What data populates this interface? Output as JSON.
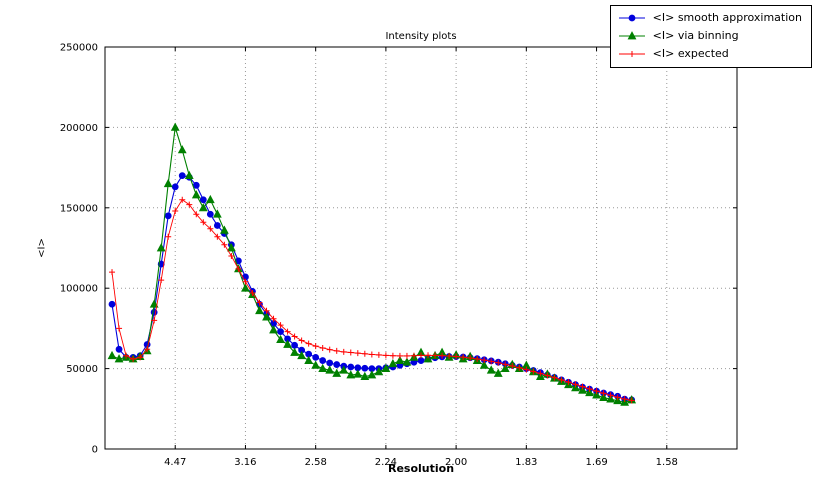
{
  "chart_data": {
    "type": "line",
    "title": "Intensity plots",
    "xlabel": "Resolution",
    "ylabel": "<I>",
    "xlim": [
      0,
      0.45
    ],
    "ylim": [
      0,
      250000
    ],
    "x_tick_values": [
      0.05,
      0.1,
      0.15,
      0.2,
      0.25,
      0.3,
      0.35,
      0.4
    ],
    "x_tick_labels": [
      "4.47",
      "3.16",
      "2.58",
      "2.24",
      "2.00",
      "1.83",
      "1.69",
      "1.58"
    ],
    "y_ticks": [
      0,
      50000,
      100000,
      150000,
      200000,
      250000
    ],
    "grid": true,
    "legend_position": "top-right",
    "colors": {
      "grid": "#999999",
      "axis": "#000000",
      "background": "#ffffff"
    },
    "x": [
      0.005,
      0.01,
      0.015,
      0.02,
      0.025,
      0.03,
      0.035,
      0.04,
      0.045,
      0.05,
      0.055,
      0.06,
      0.065,
      0.07,
      0.075,
      0.08,
      0.085,
      0.09,
      0.095,
      0.1,
      0.105,
      0.11,
      0.115,
      0.12,
      0.125,
      0.13,
      0.135,
      0.14,
      0.145,
      0.15,
      0.155,
      0.16,
      0.165,
      0.17,
      0.175,
      0.18,
      0.185,
      0.19,
      0.195,
      0.2,
      0.205,
      0.21,
      0.215,
      0.22,
      0.225,
      0.23,
      0.235,
      0.24,
      0.245,
      0.25,
      0.255,
      0.26,
      0.265,
      0.27,
      0.275,
      0.28,
      0.285,
      0.29,
      0.295,
      0.3,
      0.305,
      0.31,
      0.315,
      0.32,
      0.325,
      0.33,
      0.335,
      0.34,
      0.345,
      0.35,
      0.355,
      0.36,
      0.365,
      0.37,
      0.375
    ],
    "series": [
      {
        "name": "<I> smooth approximation",
        "color": "#0000dd",
        "marker": "circle",
        "values": [
          90000,
          62000,
          57000,
          57000,
          58000,
          65000,
          85000,
          115000,
          145000,
          163000,
          170000,
          169000,
          164000,
          155000,
          146000,
          139000,
          134000,
          127000,
          117000,
          107000,
          98000,
          90000,
          84000,
          78000,
          73000,
          68500,
          64500,
          61500,
          59000,
          57000,
          55000,
          53500,
          52500,
          51500,
          51000,
          50500,
          50200,
          50000,
          50000,
          50500,
          51000,
          52000,
          53000,
          54000,
          55000,
          56000,
          56800,
          57300,
          57500,
          57500,
          57200,
          56800,
          56200,
          55500,
          54800,
          54000,
          53000,
          52000,
          51000,
          50000,
          48800,
          47500,
          46000,
          44500,
          43000,
          41500,
          40000,
          38500,
          37200,
          36000,
          34800,
          33800,
          32800,
          31000,
          30500
        ]
      },
      {
        "name": "<I> via binning",
        "color": "#008000",
        "marker": "triangle",
        "values": [
          58000,
          56000,
          57000,
          56000,
          57500,
          61000,
          90000,
          125000,
          165000,
          200000,
          186000,
          170000,
          158000,
          150000,
          155000,
          146000,
          136000,
          125000,
          112000,
          100000,
          96000,
          86000,
          82000,
          74000,
          68000,
          65000,
          60000,
          58000,
          55000,
          52000,
          50000,
          49000,
          47000,
          49000,
          46000,
          46500,
          45000,
          46000,
          48000,
          50000,
          53000,
          55000,
          54000,
          57000,
          60000,
          56000,
          58000,
          60000,
          57000,
          58500,
          56000,
          57500,
          55000,
          52000,
          49000,
          47000,
          50000,
          52500,
          50000,
          52000,
          48000,
          45000,
          46500,
          44000,
          42000,
          40000,
          38000,
          36500,
          35000,
          33500,
          32000,
          31000,
          30000,
          29000,
          30500
        ]
      },
      {
        "name": "<I> expected",
        "color": "#ff0000",
        "marker": "plus",
        "values": [
          110000,
          75000,
          58000,
          56000,
          57000,
          62000,
          80000,
          105000,
          132000,
          148000,
          155000,
          152000,
          146000,
          141000,
          137000,
          132000,
          127000,
          120000,
          112000,
          104000,
          97000,
          91000,
          86000,
          81000,
          77000,
          73000,
          70000,
          67500,
          65500,
          64000,
          62800,
          61800,
          61000,
          60400,
          60000,
          59600,
          59200,
          58800,
          58500,
          58200,
          58000,
          57900,
          57900,
          58000,
          58200,
          58300,
          58200,
          58000,
          57800,
          57500,
          57100,
          56600,
          56000,
          55300,
          54500,
          53600,
          52600,
          51600,
          50500,
          49400,
          48200,
          47000,
          45700,
          44400,
          43000,
          41600,
          40200,
          38800,
          37400,
          36000,
          34700,
          33400,
          32200,
          31100,
          30200
        ]
      }
    ]
  }
}
